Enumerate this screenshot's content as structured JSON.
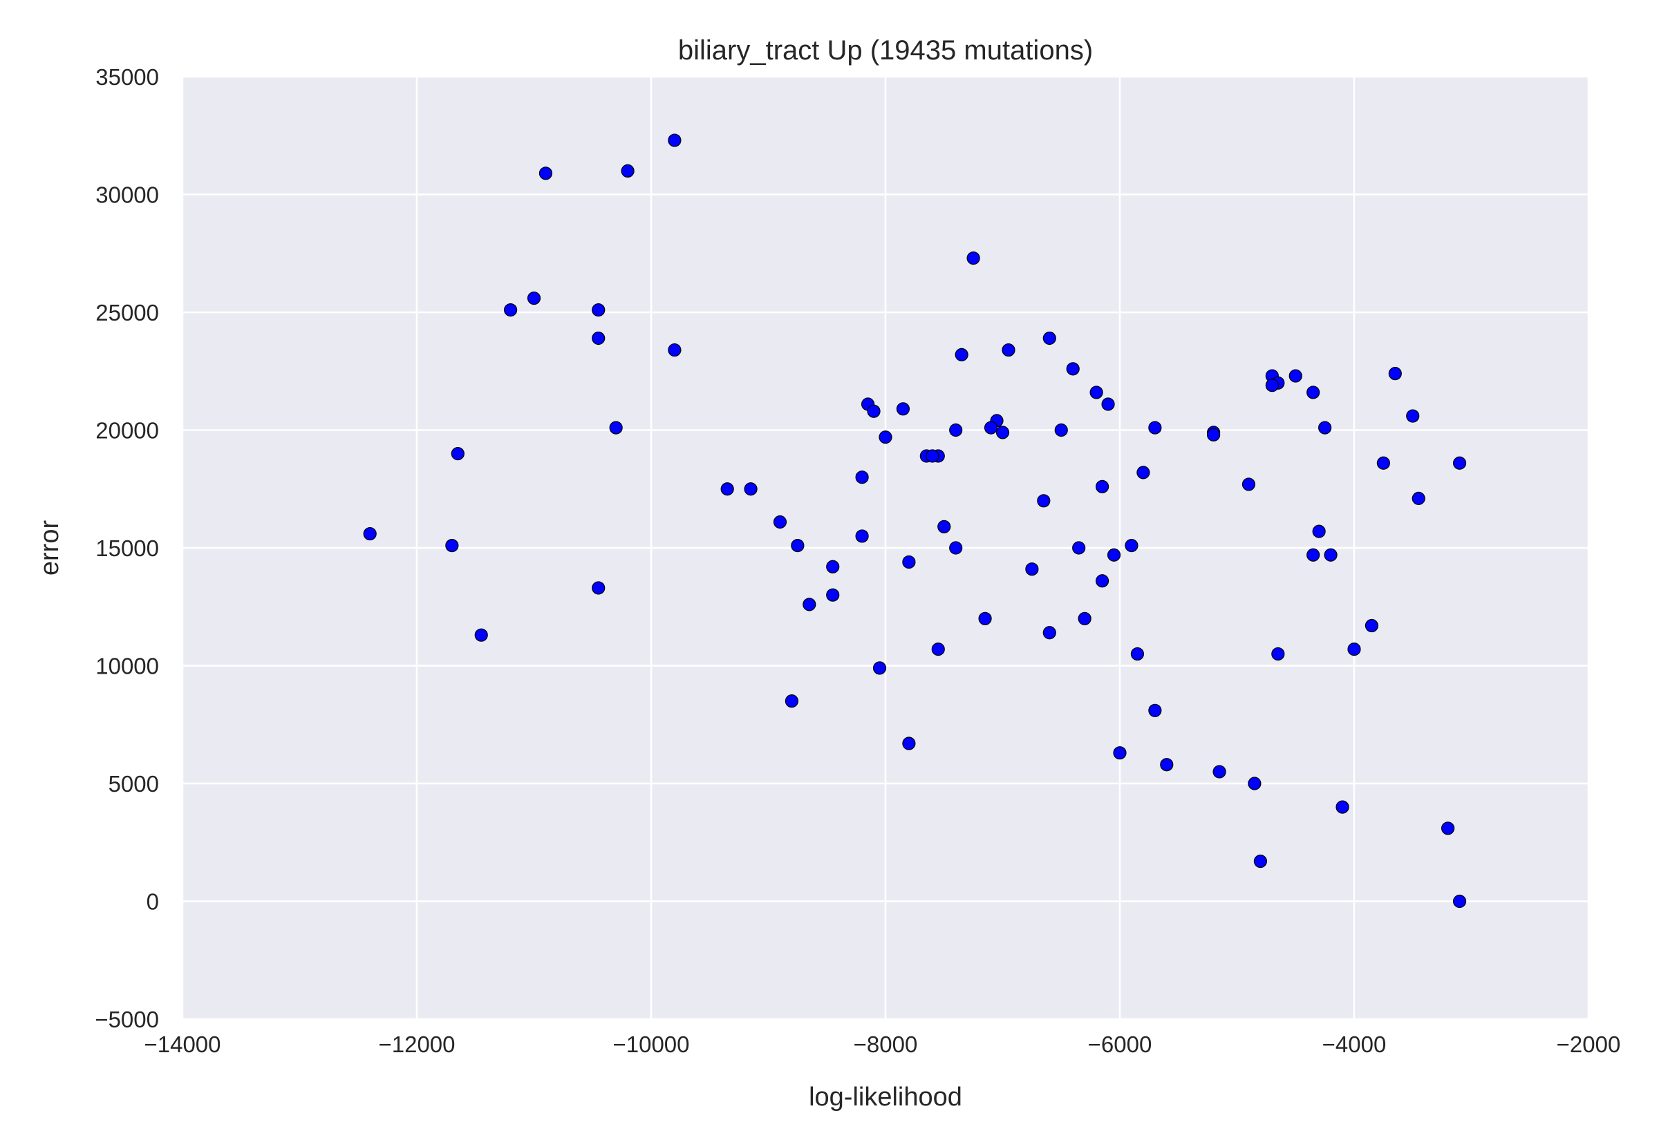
{
  "chart_data": {
    "type": "scatter",
    "title": "biliary_tract Up (19435 mutations)",
    "xlabel": "log-likelihood",
    "ylabel": "error",
    "xlim": [
      -14000,
      -2000
    ],
    "ylim": [
      -5000,
      35000
    ],
    "xticks": [
      -14000,
      -12000,
      -10000,
      -8000,
      -6000,
      -4000,
      -2000
    ],
    "yticks": [
      -5000,
      0,
      5000,
      10000,
      15000,
      20000,
      25000,
      30000,
      35000
    ],
    "xtick_labels": [
      "−14000",
      "−12000",
      "−10000",
      "−8000",
      "−6000",
      "−4000",
      "−2000"
    ],
    "ytick_labels": [
      "−5000",
      "0",
      "5000",
      "10000",
      "15000",
      "20000",
      "25000",
      "30000",
      "35000"
    ],
    "grid": true,
    "background": "#EAEAF2",
    "marker_color": "#0000FF",
    "marker_edge_color": "#000000",
    "points": [
      [
        -9800,
        32300
      ],
      [
        -10900,
        30900
      ],
      [
        -10200,
        31000
      ],
      [
        -7250,
        27300
      ],
      [
        -11000,
        25600
      ],
      [
        -11200,
        25100
      ],
      [
        -10450,
        25100
      ],
      [
        -10450,
        23900
      ],
      [
        -9800,
        23400
      ],
      [
        -7350,
        23200
      ],
      [
        -6950,
        23400
      ],
      [
        -6600,
        23900
      ],
      [
        -6400,
        22600
      ],
      [
        -6200,
        21600
      ],
      [
        -6100,
        21100
      ],
      [
        -4700,
        22300
      ],
      [
        -4500,
        22300
      ],
      [
        -4650,
        22000
      ],
      [
        -4700,
        21900
      ],
      [
        -4350,
        21600
      ],
      [
        -3650,
        22400
      ],
      [
        -3500,
        20600
      ],
      [
        -4250,
        20100
      ],
      [
        -5700,
        20100
      ],
      [
        -5200,
        19900
      ],
      [
        -5200,
        19800
      ],
      [
        -6500,
        20000
      ],
      [
        -7050,
        20400
      ],
      [
        -7100,
        20100
      ],
      [
        -7000,
        19900
      ],
      [
        -7400,
        20000
      ],
      [
        -8150,
        21100
      ],
      [
        -8100,
        20800
      ],
      [
        -7850,
        20900
      ],
      [
        -8000,
        19700
      ],
      [
        -10300,
        20100
      ],
      [
        -11650,
        19000
      ],
      [
        -7650,
        18900
      ],
      [
        -7550,
        18900
      ],
      [
        -7600,
        18900
      ],
      [
        -8200,
        18000
      ],
      [
        -5800,
        18200
      ],
      [
        -6150,
        17600
      ],
      [
        -6650,
        17000
      ],
      [
        -4900,
        17700
      ],
      [
        -3750,
        18600
      ],
      [
        -3100,
        18600
      ],
      [
        -3450,
        17100
      ],
      [
        -9350,
        17500
      ],
      [
        -9150,
        17500
      ],
      [
        -8900,
        16100
      ],
      [
        -8750,
        15100
      ],
      [
        -12400,
        15600
      ],
      [
        -11700,
        15100
      ],
      [
        -8200,
        15500
      ],
      [
        -7500,
        15900
      ],
      [
        -7400,
        15000
      ],
      [
        -6350,
        15000
      ],
      [
        -6050,
        14700
      ],
      [
        -5900,
        15100
      ],
      [
        -4300,
        15700
      ],
      [
        -4350,
        14700
      ],
      [
        -4200,
        14700
      ],
      [
        -8450,
        14200
      ],
      [
        -7800,
        14400
      ],
      [
        -6750,
        14100
      ],
      [
        -6150,
        13600
      ],
      [
        -10450,
        13300
      ],
      [
        -8450,
        13000
      ],
      [
        -8650,
        12600
      ],
      [
        -7150,
        12000
      ],
      [
        -6300,
        12000
      ],
      [
        -11450,
        11300
      ],
      [
        -6600,
        11400
      ],
      [
        -7550,
        10700
      ],
      [
        -5850,
        10500
      ],
      [
        -4650,
        10500
      ],
      [
        -4000,
        10700
      ],
      [
        -3850,
        11700
      ],
      [
        -8050,
        9900
      ],
      [
        -8800,
        8500
      ],
      [
        -5700,
        8100
      ],
      [
        -7800,
        6700
      ],
      [
        -6000,
        6300
      ],
      [
        -5600,
        5800
      ],
      [
        -5150,
        5500
      ],
      [
        -4850,
        5000
      ],
      [
        -4100,
        4000
      ],
      [
        -3200,
        3100
      ],
      [
        -4800,
        1700
      ],
      [
        -3100,
        0
      ]
    ]
  }
}
